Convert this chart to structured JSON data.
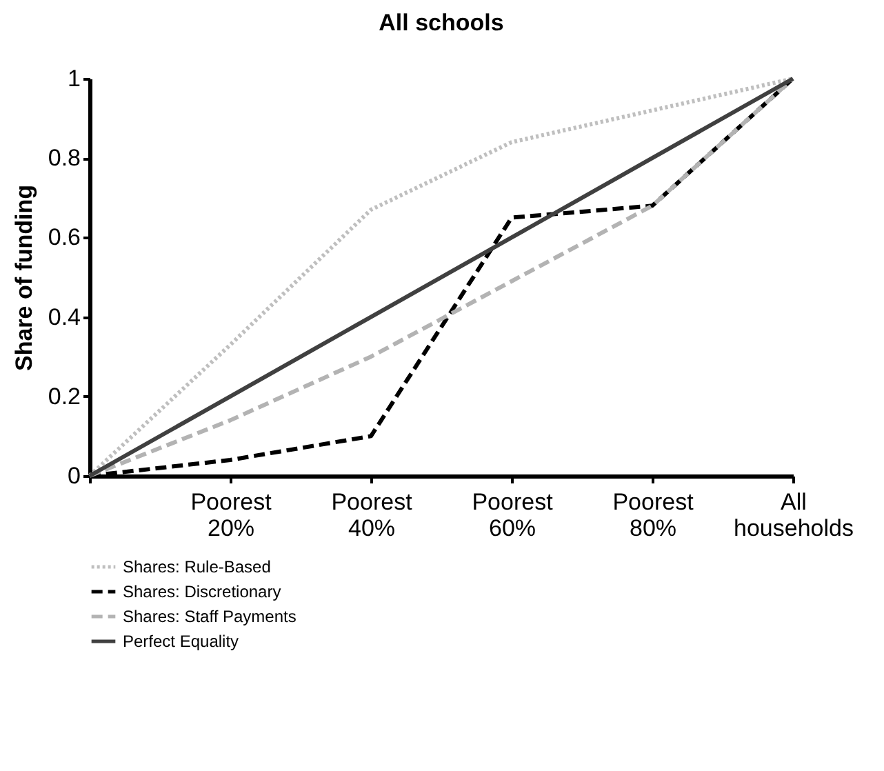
{
  "chart_data": {
    "type": "line",
    "title": "All schools",
    "ylabel": "Share of funding",
    "categories": [
      null,
      "Poorest 20%",
      "Poorest 40%",
      "Poorest 60%",
      "Poorest 80%",
      "All households"
    ],
    "series": [
      {
        "name": "Shares: Rule-Based",
        "color": "#bfbfbf",
        "line_style": "dotted",
        "values": [
          0,
          0.33,
          0.67,
          0.84,
          0.92,
          1
        ]
      },
      {
        "name": "Shares: Discretionary",
        "color": "#000000",
        "line_style": "dashed",
        "values": [
          0,
          0.04,
          0.1,
          0.65,
          0.68,
          1
        ]
      },
      {
        "name": "Shares: Staff Payments",
        "color": "#b3b3b3",
        "line_style": "dashed",
        "values": [
          0,
          0.14,
          0.3,
          0.49,
          0.68,
          1
        ]
      },
      {
        "name": "Perfect Equality",
        "color": "#404040",
        "line_style": "solid",
        "values": [
          0,
          0.2,
          0.4,
          0.6,
          0.8,
          1
        ]
      }
    ],
    "ylim": [
      0,
      1
    ],
    "yticks": [
      0,
      0.2,
      0.4,
      0.6,
      0.8,
      1
    ],
    "grid": false,
    "legend": "bottom",
    "marker": "none"
  }
}
